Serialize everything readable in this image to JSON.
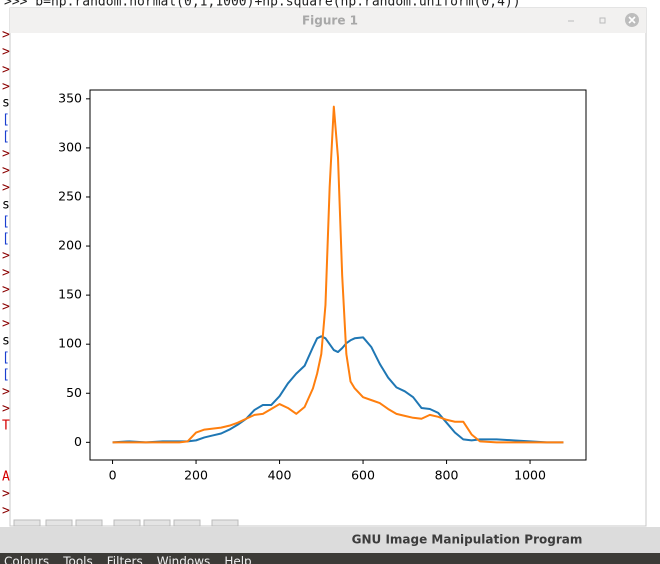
{
  "terminal": {
    "prompt_line": ">>> b=np.random.normal(0,1,1000)+np.square(np.random.uniform(0,4))",
    "margin": [
      ">",
      ">",
      ">",
      ">",
      "s",
      "[",
      "[",
      ">",
      ">",
      ">",
      "s",
      "[",
      "[",
      ">",
      ">",
      ">",
      ">",
      ">",
      "s",
      "[",
      "[",
      ">",
      ">",
      "T",
      "A",
      ">",
      ">"
    ]
  },
  "window": {
    "title": "Figure 1"
  },
  "chart_data": {
    "type": "line",
    "x": [
      0,
      40,
      80,
      120,
      160,
      180,
      200,
      220,
      240,
      260,
      280,
      300,
      320,
      340,
      360,
      380,
      400,
      420,
      440,
      460,
      480,
      490,
      500,
      510,
      520,
      530,
      540,
      550,
      560,
      570,
      580,
      600,
      620,
      640,
      660,
      680,
      700,
      720,
      740,
      760,
      780,
      800,
      820,
      840,
      860,
      880,
      920,
      960,
      1000,
      1040,
      1080
    ],
    "series": [
      {
        "color": "#1f77b4",
        "values": [
          0,
          1,
          0,
          1,
          1,
          1,
          2,
          5,
          7,
          9,
          13,
          18,
          24,
          33,
          38,
          38,
          47,
          60,
          70,
          78,
          97,
          106,
          108,
          106,
          100,
          94,
          92,
          96,
          101,
          104,
          106,
          107,
          97,
          80,
          66,
          56,
          52,
          46,
          35,
          34,
          30,
          20,
          10,
          3,
          2,
          3,
          3,
          2,
          1,
          0,
          0
        ]
      },
      {
        "color": "#ff7f0e",
        "values": [
          0,
          0,
          0,
          0,
          0,
          1,
          10,
          13,
          14,
          15,
          17,
          20,
          24,
          28,
          29,
          34,
          39,
          35,
          29,
          36,
          55,
          70,
          90,
          140,
          260,
          342,
          290,
          170,
          90,
          62,
          55,
          46,
          43,
          40,
          34,
          29,
          27,
          25,
          24,
          28,
          26,
          23,
          21,
          21,
          8,
          1,
          0,
          0,
          0,
          0,
          0
        ]
      }
    ],
    "xlim": [
      -54,
      1134
    ],
    "ylim": [
      -18,
      359
    ],
    "xticks": [
      0,
      200,
      400,
      600,
      800,
      1000
    ],
    "yticks": [
      0,
      50,
      100,
      150,
      200,
      250,
      300,
      350
    ]
  },
  "gimp": {
    "title": "GNU Image Manipulation Program",
    "menu": [
      "Colours",
      "Tools",
      "Filters",
      "Windows",
      "Help"
    ]
  }
}
